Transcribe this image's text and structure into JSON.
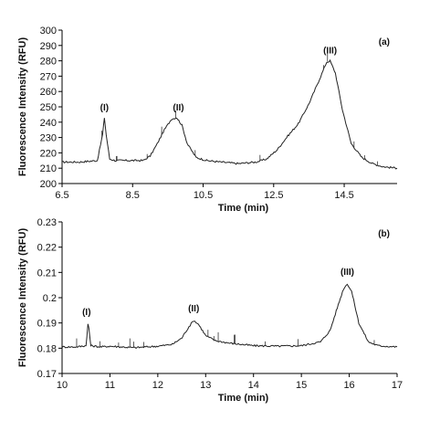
{
  "chart_data": [
    {
      "type": "line",
      "panel_label": "(a)",
      "xlabel": "Time (min)",
      "ylabel": "Fluorescence Intensity (RFU)",
      "xlim": [
        6.5,
        16.0
      ],
      "ylim": [
        200,
        300
      ],
      "xticks": [
        "6.5",
        "8.5",
        "10.5",
        "12.5",
        "14.5"
      ],
      "yticks": [
        "200",
        "210",
        "220",
        "230",
        "240",
        "250",
        "260",
        "270",
        "280",
        "290",
        "300"
      ],
      "series": [
        {
          "x": [
            6.5,
            7.0,
            7.5,
            7.65,
            7.7,
            7.75,
            7.85,
            8.0,
            8.5,
            8.8,
            9.0,
            9.2,
            9.4,
            9.6,
            9.75,
            9.9,
            10.05,
            10.3,
            10.6,
            11.0,
            11.5,
            12.0,
            12.3,
            12.6,
            12.9,
            13.2,
            13.5,
            13.8,
            14.0,
            14.1,
            14.25,
            14.45,
            14.7,
            15.0,
            15.3,
            15.6,
            16.0
          ],
          "y": [
            214,
            214,
            215,
            232,
            243,
            232,
            216,
            215,
            215,
            215,
            218,
            226,
            235,
            242,
            243,
            238,
            226,
            217,
            215,
            214,
            213,
            214,
            216,
            222,
            231,
            239,
            252,
            268,
            279,
            280,
            272,
            248,
            226,
            217,
            213,
            211,
            210
          ]
        }
      ],
      "annotations": [
        {
          "text": "(I)",
          "x": 7.7,
          "y": 243
        },
        {
          "text": "(II)",
          "x": 9.8,
          "y": 243
        },
        {
          "text": "(III)",
          "x": 14.1,
          "y": 280
        }
      ]
    },
    {
      "type": "line",
      "panel_label": "(b)",
      "xlabel": "Time (min)",
      "ylabel": "Fluorescence Intensity (RFU)",
      "xlim": [
        10,
        17
      ],
      "ylim": [
        0.17,
        0.23
      ],
      "xticks": [
        "10",
        "11",
        "12",
        "13",
        "14",
        "15",
        "16",
        "17"
      ],
      "yticks": [
        "0.17",
        "0.18",
        "0.19",
        "0.2",
        "0.21",
        "0.22",
        "0.23"
      ],
      "series": [
        {
          "x": [
            10.0,
            10.3,
            10.5,
            10.54,
            10.56,
            10.6,
            10.8,
            11.0,
            11.5,
            12.0,
            12.3,
            12.5,
            12.65,
            12.75,
            12.85,
            13.0,
            13.2,
            13.5,
            14.0,
            14.5,
            15.0,
            15.4,
            15.6,
            15.75,
            15.88,
            15.96,
            16.05,
            16.2,
            16.4,
            16.6,
            17.0
          ],
          "y": [
            0.1805,
            0.1805,
            0.181,
            0.1895,
            0.188,
            0.181,
            0.1805,
            0.1808,
            0.1802,
            0.1808,
            0.1815,
            0.184,
            0.1885,
            0.191,
            0.1895,
            0.185,
            0.183,
            0.182,
            0.181,
            0.1808,
            0.181,
            0.1825,
            0.187,
            0.196,
            0.2035,
            0.2055,
            0.2025,
            0.19,
            0.1825,
            0.181,
            0.1805
          ]
        }
      ],
      "annotations": [
        {
          "text": "(I)",
          "x": 10.55,
          "y": 0.1895
        },
        {
          "text": "(II)",
          "x": 12.75,
          "y": 0.191
        },
        {
          "text": "(III)",
          "x": 15.96,
          "y": 0.2055
        }
      ]
    }
  ]
}
